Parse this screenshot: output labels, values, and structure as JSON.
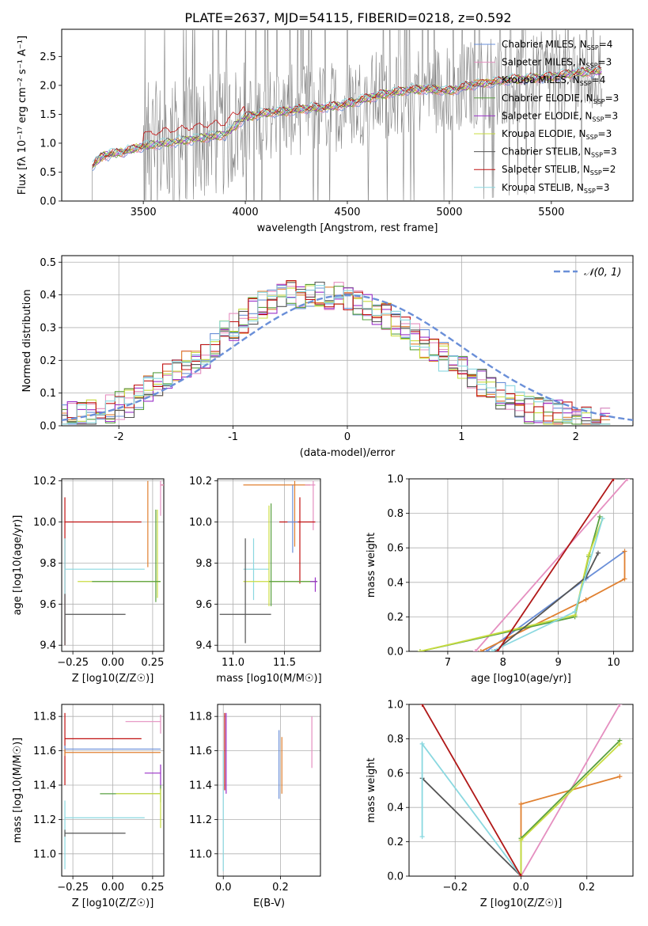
{
  "figure": {
    "title": "PLATE=2637, MJD=54115, FIBERID=0218, z=0.592"
  },
  "colors": {
    "chabrier_miles": "#6a8fd8",
    "salpeter_miles": "#e58fc0",
    "kroupa_miles": "#e08030",
    "chabrier_elodie": "#5aa040",
    "salpeter_elodie": "#9b30c8",
    "kroupa_elodie": "#c8dc40",
    "chabrier_stelib": "#555555",
    "salpeter_stelib": "#c01010",
    "kroupa_stelib": "#8ad8e0",
    "data": "#7f7f7f",
    "gauss": "#6a8fd8",
    "diag_darkred": "#b01818"
  },
  "chart_data": [
    {
      "id": "spectrum",
      "type": "line",
      "title": "PLATE=2637, MJD=54115, FIBERID=0218, z=0.592",
      "xlabel": "wavelength [Angstrom, rest frame]",
      "ylabel": "Flux [fλ 10⁻¹⁷ erg cm⁻² s⁻¹ A⁻¹]",
      "xlim": [
        3100,
        5900
      ],
      "ylim": [
        0,
        2.97
      ],
      "xticks": [
        3500,
        4000,
        4500,
        5000,
        5500
      ],
      "yticks": [
        0.0,
        0.5,
        1.0,
        1.5,
        2.0,
        2.5
      ],
      "legend_position": "top-right",
      "grid": false,
      "legend": [
        {
          "label": "Chabrier MILES, N",
          "sub": "SSP",
          "count": "=4",
          "color": "#6a8fd8"
        },
        {
          "label": "Salpeter MILES, N",
          "sub": "SSP",
          "count": "=3",
          "color": "#e58fc0"
        },
        {
          "label": "Kroupa MILES, N",
          "sub": "SSP",
          "count": "=4",
          "color": "#e08030"
        },
        {
          "label": "Chabrier ELODIE, N",
          "sub": "SSP",
          "count": "=3",
          "color": "#5aa040"
        },
        {
          "label": "Salpeter ELODIE, N",
          "sub": "SSP",
          "count": "=3",
          "color": "#9b30c8"
        },
        {
          "label": "Kroupa ELODIE, N",
          "sub": "SSP",
          "count": "=3",
          "color": "#c8dc40"
        },
        {
          "label": "Chabrier STELIB, N",
          "sub": "SSP",
          "count": "=3",
          "color": "#555555"
        },
        {
          "label": "Salpeter STELIB, N",
          "sub": "SSP",
          "count": "=2",
          "color": "#c01010"
        },
        {
          "label": "Kroupa STELIB, N",
          "sub": "SSP",
          "count": "=3",
          "color": "#8ad8e0"
        }
      ],
      "model_continuum": {
        "x": [
          3250,
          3300,
          3400,
          3500,
          3600,
          3700,
          3800,
          3900,
          4000,
          4100,
          4200,
          4300,
          4400,
          4500,
          4600,
          4700,
          4800,
          4900,
          5000,
          5100,
          5200,
          5300,
          5400,
          5500,
          5600,
          5750
        ],
        "y": [
          0.6,
          0.78,
          0.85,
          0.95,
          1.0,
          1.05,
          1.1,
          1.15,
          1.45,
          1.52,
          1.55,
          1.6,
          1.62,
          1.68,
          1.78,
          1.86,
          1.92,
          1.94,
          1.9,
          2.0,
          2.05,
          2.1,
          2.12,
          2.15,
          2.2,
          2.25
        ]
      }
    },
    {
      "id": "residuals",
      "type": "line",
      "xlabel": "(data-model)/error",
      "ylabel": "Normed distribution",
      "xlim": [
        -2.5,
        2.5
      ],
      "ylim": [
        0,
        0.52
      ],
      "xticks": [
        -2,
        -1,
        0,
        1,
        2
      ],
      "yticks": [
        0.0,
        0.1,
        0.2,
        0.3,
        0.4,
        0.5
      ],
      "grid": true,
      "legend_position": "top-right",
      "legend": [
        {
          "label": "𝒩(0, 1)",
          "color": "#6a8fd8",
          "dashed": true
        }
      ],
      "bin_width": 0.1,
      "base": [
        0.01,
        0.02,
        0.02,
        0.03,
        0.03,
        0.035,
        0.04,
        0.05,
        0.06,
        0.07,
        0.09,
        0.11,
        0.13,
        0.15,
        0.17,
        0.19,
        0.2,
        0.22,
        0.25,
        0.28,
        0.3,
        0.32,
        0.35,
        0.37,
        0.38,
        0.39,
        0.4,
        0.4,
        0.41,
        0.41,
        0.4,
        0.4,
        0.39,
        0.38,
        0.36,
        0.35,
        0.33,
        0.31,
        0.29,
        0.27,
        0.25,
        0.23,
        0.21,
        0.19,
        0.17,
        0.15,
        0.13,
        0.11,
        0.09,
        0.08,
        0.06,
        0.05,
        0.045,
        0.04,
        0.035,
        0.03,
        0.025,
        0.02,
        0.018,
        0.015
      ]
    },
    {
      "id": "age_vs_Z",
      "type": "scatter",
      "xlabel": "Z [log10(Z/Z☉)]",
      "ylabel": "age  [log10(age/yr)]",
      "xlim": [
        -0.32,
        0.32
      ],
      "ylim": [
        9.37,
        10.21
      ],
      "xticks": [
        -0.25,
        0.0,
        0.25
      ],
      "yticks": [
        9.4,
        9.6,
        9.8,
        10.0,
        10.2
      ],
      "xtick_labels": [
        "−0.25",
        "0.00",
        "0.25"
      ],
      "grid": true,
      "points": [
        {
          "x": 0.22,
          "y": 10.18,
          "xl": -0.52,
          "xh": 0.08,
          "yl": 0.4,
          "yh": 0.02,
          "c": "#e08030"
        },
        {
          "x": 0.3,
          "y": 10.18,
          "xl": -0.6,
          "xh": 0.0,
          "yl": 0.15,
          "yh": 0.02,
          "c": "#e58fc0"
        },
        {
          "x": -0.3,
          "y": 10.0,
          "xl": 0.0,
          "xh": 0.48,
          "yl": 0.6,
          "yh": 0.12,
          "c": "#c01010"
        },
        {
          "x": -0.3,
          "y": 9.77,
          "xl": 0.0,
          "xh": 0.5,
          "yl": 0.35,
          "yh": 0.15,
          "c": "#8ad8e0"
        },
        {
          "x": 0.28,
          "y": 9.71,
          "xl": 0.5,
          "xh": 0.02,
          "yl": 0.08,
          "yh": 0.35,
          "c": "#c8dc40"
        },
        {
          "x": 0.27,
          "y": 9.71,
          "xl": 0.4,
          "xh": 0.03,
          "yl": 0.1,
          "yh": 0.35,
          "c": "#5aa040"
        },
        {
          "x": -0.3,
          "y": 9.55,
          "xl": 0.0,
          "xh": 0.38,
          "yl": 0.15,
          "yh": 0.1,
          "c": "#555555"
        }
      ]
    },
    {
      "id": "age_vs_mass",
      "type": "scatter",
      "xlabel": "mass [log10(M/M☉)]",
      "ylabel": "",
      "xlim": [
        10.85,
        11.85
      ],
      "ylim": [
        9.37,
        10.21
      ],
      "xticks": [
        11.0,
        11.5
      ],
      "yticks": [
        9.4,
        9.6,
        9.8,
        10.0,
        10.2
      ],
      "xtick_labels": [
        "11.0",
        "11.5"
      ],
      "grid": true,
      "points": [
        {
          "x": 11.6,
          "y": 10.18,
          "xl": 0.5,
          "xh": 0.15,
          "yl": 0.3,
          "yh": 0.02,
          "c": "#e08030"
        },
        {
          "x": 11.78,
          "y": 10.18,
          "xl": 0.08,
          "xh": 0.02,
          "yl": 0.22,
          "yh": 0.02,
          "c": "#e58fc0"
        },
        {
          "x": 11.65,
          "y": 10.0,
          "xl": 0.2,
          "xh": 0.15,
          "yl": 0.3,
          "yh": 0.12,
          "c": "#c01010"
        },
        {
          "x": 11.58,
          "y": 10.0,
          "xl": 0.05,
          "xh": 0.05,
          "yl": 0.15,
          "yh": 0.18,
          "c": "#6a8fd8"
        },
        {
          "x": 11.2,
          "y": 9.77,
          "xl": 0.1,
          "xh": 0.15,
          "yl": 0.15,
          "yh": 0.15,
          "c": "#8ad8e0"
        },
        {
          "x": 11.35,
          "y": 9.71,
          "xl": 0.25,
          "xh": 0.4,
          "yl": 0.12,
          "yh": 0.37,
          "c": "#c8dc40"
        },
        {
          "x": 11.37,
          "y": 9.71,
          "xl": 0.02,
          "xh": 0.45,
          "yl": 0.12,
          "yh": 0.38,
          "c": "#5aa040"
        },
        {
          "x": 11.8,
          "y": 9.71,
          "xl": 0.05,
          "xh": 0.02,
          "yl": 0.05,
          "yh": 0.02,
          "c": "#9b30c8"
        },
        {
          "x": 11.12,
          "y": 9.55,
          "xl": 0.25,
          "xh": 0.25,
          "yl": 0.14,
          "yh": 0.37,
          "c": "#555555"
        }
      ]
    },
    {
      "id": "massweight_vs_age",
      "type": "line",
      "xlabel": "age  [log10(age/yr)]",
      "ylabel": "mass weight",
      "xlim": [
        6.3,
        10.35
      ],
      "ylim": [
        0,
        1
      ],
      "xticks": [
        7,
        8,
        9,
        10
      ],
      "yticks": [
        0.0,
        0.2,
        0.4,
        0.6,
        0.8,
        1.0
      ],
      "ytick_labels": [
        "0.0",
        "0.2",
        "0.4",
        "0.6",
        "0.8",
        "1.0"
      ],
      "grid": true,
      "series": [
        {
          "c": "#6a8fd8",
          "x": [
            7.7,
            9.5,
            10.2
          ],
          "y": [
            0.0,
            0.42,
            0.58
          ]
        },
        {
          "c": "#e08030",
          "x": [
            7.6,
            9.5,
            10.2,
            10.2
          ],
          "y": [
            0.0,
            0.3,
            0.42,
            0.58
          ]
        },
        {
          "c": "#e58fc0",
          "x": [
            7.5,
            10.25
          ],
          "y": [
            0.0,
            1.0
          ]
        },
        {
          "c": "#5aa040",
          "x": [
            6.5,
            9.3,
            9.55,
            9.75
          ],
          "y": [
            0.0,
            0.2,
            0.55,
            0.78
          ]
        },
        {
          "c": "#c8dc40",
          "x": [
            6.5,
            9.3,
            9.55,
            9.8
          ],
          "y": [
            0.0,
            0.21,
            0.56,
            0.77
          ]
        },
        {
          "c": "#555555",
          "x": [
            7.85,
            9.5,
            9.72
          ],
          "y": [
            0.0,
            0.43,
            0.57
          ]
        },
        {
          "c": "#8ad8e0",
          "x": [
            7.8,
            9.3,
            9.8
          ],
          "y": [
            0.0,
            0.23,
            0.77
          ]
        },
        {
          "c": "#b01818",
          "x": [
            7.9,
            10.0
          ],
          "y": [
            0.0,
            1.0
          ]
        }
      ]
    },
    {
      "id": "mass_vs_Z",
      "type": "scatter",
      "xlabel": "Z [log10(Z/Z☉)]",
      "ylabel": "mass [log10(M/M☉)]",
      "xlim": [
        -0.32,
        0.32
      ],
      "ylim": [
        10.87,
        11.87
      ],
      "xticks": [
        -0.25,
        0.0,
        0.25
      ],
      "yticks": [
        11.0,
        11.2,
        11.4,
        11.6,
        11.8
      ],
      "xtick_labels": [
        "−0.25",
        "0.00",
        "0.25"
      ],
      "grid": true,
      "points": [
        {
          "x": -0.3,
          "y": 11.67,
          "xl": 0.0,
          "xh": 0.48,
          "yl": 0.27,
          "yh": 0.15,
          "c": "#c01010"
        },
        {
          "x": -0.3,
          "y": 11.61,
          "xl": 0.0,
          "xh": 0.6,
          "yl": 0.02,
          "yh": 0.02,
          "c": "#6a8fd8"
        },
        {
          "x": -0.3,
          "y": 11.59,
          "xl": 0.0,
          "xh": 0.6,
          "yl": 0.02,
          "yh": 0.02,
          "c": "#e08030"
        },
        {
          "x": 0.3,
          "y": 11.77,
          "xl": 0.22,
          "xh": 0.0,
          "yl": 0.07,
          "yh": 0.04,
          "c": "#e58fc0"
        },
        {
          "x": 0.3,
          "y": 11.47,
          "xl": 0.1,
          "xh": 0.0,
          "yl": 0.1,
          "yh": 0.05,
          "c": "#9b30c8"
        },
        {
          "x": 0.3,
          "y": 11.35,
          "xl": 0.38,
          "xh": 0.0,
          "yl": 0.05,
          "yh": 0.05,
          "c": "#5aa040"
        },
        {
          "x": 0.3,
          "y": 11.35,
          "xl": 0.28,
          "xh": 0.0,
          "yl": 0.2,
          "yh": 0.03,
          "c": "#c8dc40"
        },
        {
          "x": -0.3,
          "y": 11.21,
          "xl": 0.0,
          "xh": 0.5,
          "yl": 0.3,
          "yh": 0.1,
          "c": "#8ad8e0"
        },
        {
          "x": -0.3,
          "y": 11.12,
          "xl": 0.0,
          "xh": 0.38,
          "yl": 0.02,
          "yh": 0.02,
          "c": "#555555"
        }
      ]
    },
    {
      "id": "mass_vs_ebv",
      "type": "scatter",
      "xlabel": "E(B-V)",
      "ylabel": "",
      "xlim": [
        -0.02,
        0.34
      ],
      "ylim": [
        10.87,
        11.87
      ],
      "xticks": [
        0.0,
        0.2
      ],
      "yticks": [
        11.0,
        11.2,
        11.4,
        11.6,
        11.8
      ],
      "xtick_labels": [
        "0.0",
        "0.2"
      ],
      "grid": true,
      "points": [
        {
          "x": 0.005,
          "y": 11.67,
          "xl": 0.0,
          "xh": 0.0,
          "yl": 0.3,
          "yh": 0.15,
          "c": "#c01010"
        },
        {
          "x": 0.01,
          "y": 11.6,
          "xl": 0.0,
          "xh": 0.0,
          "yl": 0.25,
          "yh": 0.22,
          "c": "#9b30c8"
        },
        {
          "x": 0.0,
          "y": 11.2,
          "xl": 0.0,
          "xh": 0.0,
          "yl": 0.3,
          "yh": 0.4,
          "c": "#8ad8e0"
        },
        {
          "x": 0.195,
          "y": 11.5,
          "xl": 0.0,
          "xh": 0.0,
          "yl": 0.18,
          "yh": 0.22,
          "c": "#6a8fd8"
        },
        {
          "x": 0.205,
          "y": 11.5,
          "xl": 0.0,
          "xh": 0.0,
          "yl": 0.15,
          "yh": 0.18,
          "c": "#e08030"
        },
        {
          "x": 0.31,
          "y": 11.65,
          "xl": 0.0,
          "xh": 0.0,
          "yl": 0.15,
          "yh": 0.15,
          "c": "#e58fc0"
        }
      ]
    },
    {
      "id": "massweight_vs_Z",
      "type": "line",
      "xlabel": "Z [log10(Z/Z☉)]",
      "ylabel": "mass weight",
      "xlim": [
        -0.34,
        0.34
      ],
      "ylim": [
        0,
        1
      ],
      "xticks": [
        -0.2,
        0.0,
        0.2
      ],
      "yticks": [
        0.0,
        0.2,
        0.4,
        0.6,
        0.8,
        1.0
      ],
      "xtick_labels": [
        "−0.2",
        "0.0",
        "0.2"
      ],
      "ytick_labels": [
        "0.0",
        "0.2",
        "0.4",
        "0.6",
        "0.8",
        "1.0"
      ],
      "grid": true,
      "series": [
        {
          "c": "#e08030",
          "x": [
            0.0,
            0.0,
            0.3
          ],
          "y": [
            0.0,
            0.42,
            0.58
          ]
        },
        {
          "c": "#e58fc0",
          "x": [
            0.0,
            0.3
          ],
          "y": [
            0.0,
            1.0
          ]
        },
        {
          "c": "#5aa040",
          "x": [
            0.0,
            0.0,
            0.3
          ],
          "y": [
            0.0,
            0.22,
            0.79
          ]
        },
        {
          "c": "#c8dc40",
          "x": [
            0.0,
            0.0,
            0.3
          ],
          "y": [
            0.0,
            0.21,
            0.77
          ]
        },
        {
          "c": "#555555",
          "x": [
            -0.3,
            0.0
          ],
          "y": [
            0.57,
            0.0
          ]
        },
        {
          "c": "#8ad8e0",
          "x": [
            -0.3,
            -0.3,
            0.0
          ],
          "y": [
            0.23,
            0.77,
            0.0
          ]
        },
        {
          "c": "#b01818",
          "x": [
            -0.3,
            0.0
          ],
          "y": [
            1.0,
            0.0
          ]
        }
      ]
    }
  ]
}
